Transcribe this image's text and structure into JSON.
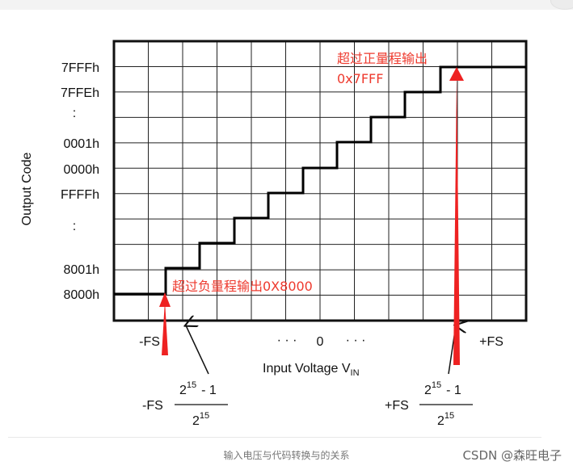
{
  "y_axis_title": "Output Code",
  "y_ticks": [
    "7FFFh",
    "7FFEh",
    ":",
    "0001h",
    "0000h",
    "FFFFh",
    ":",
    "8001h",
    "8000h"
  ],
  "x_labels": {
    "neg_fs": "-FS",
    "dots_left": "· · ·",
    "zero": "0",
    "dots_right": "· · ·",
    "pos_fs": "+FS",
    "axis_title_main": "Input Voltage V",
    "axis_title_sub": "IN"
  },
  "formulas": {
    "left_prefix": "-FS",
    "right_prefix": "+FS",
    "numerator": "2",
    "numerator_exp": "15",
    "numerator_suffix": "- 1",
    "denominator": "2",
    "denominator_exp": "15"
  },
  "annotations": {
    "positive_line1": "超过正量程输出",
    "positive_line2": "0x7FFF",
    "negative": "超过负量程输出0X8000"
  },
  "caption": "输入电压与代码转换与的关系",
  "watermark": "CSDN @森旺电子",
  "colors": {
    "annotation": "#ee3a2e",
    "arrow": "#ee2222",
    "grid": "#222222"
  }
}
